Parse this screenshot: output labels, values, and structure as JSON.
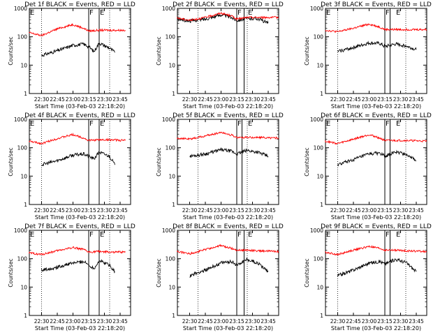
{
  "colors": {
    "events": "#000000",
    "lld": "#ff0000",
    "background": "#ffffff"
  },
  "shared": {
    "ylabel": "Counts/sec",
    "xlabel": "Start Time (03-Feb-03 22:18:20)",
    "x_tick_labels": [
      "22:30",
      "22:45",
      "23:00",
      "23:15",
      "23:30",
      "23:45"
    ],
    "y_tick_labels": [
      "1",
      "10",
      "100",
      "1000"
    ],
    "yscale": "log",
    "ylim": [
      1,
      1000
    ],
    "xlim": [
      "22:18:20",
      "23:55"
    ]
  },
  "chart_data": [
    {
      "type": "line",
      "title": "Det 1f BLACK = Events, RED = LLD",
      "x_tick_labels": [
        "22:30",
        "22:45",
        "23:00",
        "23:15",
        "23:30",
        "23:45"
      ],
      "markers": [
        {
          "label": "E",
          "at": "22:18"
        },
        {
          "label": "F",
          "at": "23:15"
        },
        {
          "label": "E",
          "at": "23:25"
        }
      ],
      "dotted_lines": [
        "22:30",
        "23:15",
        "23:35"
      ],
      "solid_lines": [
        "23:15",
        "23:25"
      ],
      "series": [
        {
          "name": "Events",
          "color": "#000000",
          "x": [
            "22:30",
            "22:45",
            "23:00",
            "23:10",
            "23:15",
            "23:20",
            "23:25",
            "23:35",
            "23:40"
          ],
          "y": [
            22,
            32,
            50,
            55,
            45,
            30,
            60,
            40,
            28
          ]
        },
        {
          "name": "LLD",
          "color": "#ff0000",
          "x": [
            "22:18",
            "22:30",
            "22:45",
            "23:00",
            "23:10",
            "23:15",
            "23:25",
            "23:35",
            "23:50"
          ],
          "y": [
            140,
            110,
            190,
            270,
            200,
            160,
            170,
            170,
            170
          ]
        }
      ]
    },
    {
      "type": "line",
      "title": "Det 2f BLACK = Events, RED = LLD",
      "x_tick_labels": [
        "22:30",
        "22:45",
        "23:00",
        "23:15",
        "23:30",
        "23:45"
      ],
      "markers": [
        {
          "label": "F",
          "at": "23:15"
        },
        {
          "label": "E",
          "at": "23:25"
        }
      ],
      "dotted_lines": [
        "22:38",
        "23:15",
        "23:25"
      ],
      "solid_lines": [
        "23:15",
        "23:22"
      ],
      "series": [
        {
          "name": "Events",
          "color": "#000000",
          "x": [
            "22:18",
            "22:30",
            "22:45",
            "23:00",
            "23:10",
            "23:15",
            "23:25",
            "23:35",
            "23:45"
          ],
          "y": [
            420,
            360,
            420,
            600,
            480,
            380,
            440,
            440,
            300
          ]
        },
        {
          "name": "LLD",
          "color": "#ff0000",
          "x": [
            "22:18",
            "22:30",
            "22:45",
            "23:00",
            "23:10",
            "23:15",
            "23:25",
            "23:35",
            "23:55"
          ],
          "y": [
            460,
            380,
            480,
            680,
            540,
            420,
            480,
            480,
            480
          ]
        }
      ]
    },
    {
      "type": "line",
      "title": "Det 3f BLACK = Events, RED = LLD",
      "x_tick_labels": [
        "22:30",
        "22:45",
        "23:00",
        "23:15",
        "23:30",
        "23:45"
      ],
      "markers": [
        {
          "label": "E",
          "at": "22:18"
        },
        {
          "label": "F",
          "at": "23:15"
        },
        {
          "label": "E",
          "at": "23:25"
        }
      ],
      "dotted_lines": [
        "22:30",
        "23:15",
        "23:35"
      ],
      "solid_lines": [
        "23:15",
        "23:20"
      ],
      "series": [
        {
          "name": "Events",
          "color": "#000000",
          "x": [
            "22:30",
            "22:45",
            "23:00",
            "23:10",
            "23:15",
            "23:25",
            "23:35",
            "23:45"
          ],
          "y": [
            30,
            42,
            60,
            58,
            45,
            55,
            48,
            35
          ]
        },
        {
          "name": "LLD",
          "color": "#ff0000",
          "x": [
            "22:18",
            "22:30",
            "22:45",
            "23:00",
            "23:10",
            "23:15",
            "23:25",
            "23:35",
            "23:55"
          ],
          "y": [
            170,
            150,
            200,
            280,
            220,
            180,
            180,
            180,
            180
          ]
        }
      ]
    },
    {
      "type": "line",
      "title": "Det 4f BLACK = Events, RED = LLD",
      "x_tick_labels": [
        "22:30",
        "22:45",
        "23:00",
        "23:15",
        "23:30",
        "23:45"
      ],
      "markers": [
        {
          "label": "E",
          "at": "22:18"
        },
        {
          "label": "F",
          "at": "23:15"
        },
        {
          "label": "E",
          "at": "23:25"
        }
      ],
      "dotted_lines": [
        "22:30",
        "23:15",
        "23:35"
      ],
      "solid_lines": [
        "23:15",
        "23:25"
      ],
      "series": [
        {
          "name": "Events",
          "color": "#000000",
          "x": [
            "22:30",
            "22:45",
            "23:00",
            "23:10",
            "23:15",
            "23:20",
            "23:25",
            "23:35",
            "23:40"
          ],
          "y": [
            25,
            35,
            55,
            60,
            50,
            40,
            70,
            50,
            25
          ]
        },
        {
          "name": "LLD",
          "color": "#ff0000",
          "x": [
            "22:18",
            "22:30",
            "22:45",
            "23:00",
            "23:10",
            "23:15",
            "23:25",
            "23:35",
            "23:50"
          ],
          "y": [
            170,
            140,
            210,
            290,
            220,
            180,
            190,
            190,
            180
          ]
        }
      ]
    },
    {
      "type": "line",
      "title": "Det 5f BLACK = Events, RED = LLD",
      "x_tick_labels": [
        "22:30",
        "22:45",
        "23:00",
        "23:15",
        "23:30",
        "23:45"
      ],
      "markers": [
        {
          "label": "F",
          "at": "23:15"
        },
        {
          "label": "E",
          "at": "23:25"
        }
      ],
      "dotted_lines": [
        "22:38",
        "23:15",
        "23:25"
      ],
      "solid_lines": [
        "23:15",
        "23:20"
      ],
      "series": [
        {
          "name": "Events",
          "color": "#000000",
          "x": [
            "22:30",
            "22:45",
            "23:00",
            "23:10",
            "23:15",
            "23:25",
            "23:35",
            "23:45"
          ],
          "y": [
            50,
            60,
            85,
            75,
            60,
            80,
            70,
            50
          ]
        },
        {
          "name": "LLD",
          "color": "#ff0000",
          "x": [
            "22:18",
            "22:30",
            "22:45",
            "23:00",
            "23:10",
            "23:15",
            "23:25",
            "23:35",
            "23:55"
          ],
          "y": [
            220,
            200,
            260,
            350,
            280,
            230,
            230,
            230,
            220
          ]
        }
      ]
    },
    {
      "type": "line",
      "title": "Det 6f BLACK = Events, RED = LLD",
      "x_tick_labels": [
        "22:30",
        "22:45",
        "23:00",
        "23:15",
        "23:30",
        "23:45"
      ],
      "markers": [
        {
          "label": "E",
          "at": "22:18"
        },
        {
          "label": "F",
          "at": "23:15"
        },
        {
          "label": "E",
          "at": "23:25"
        }
      ],
      "dotted_lines": [
        "22:30",
        "23:15",
        "23:35"
      ],
      "solid_lines": [
        "23:15",
        "23:20"
      ],
      "series": [
        {
          "name": "Events",
          "color": "#000000",
          "x": [
            "22:30",
            "22:45",
            "23:00",
            "23:10",
            "23:15",
            "23:25",
            "23:35",
            "23:45"
          ],
          "y": [
            25,
            38,
            60,
            65,
            50,
            70,
            60,
            35
          ]
        },
        {
          "name": "LLD",
          "color": "#ff0000",
          "x": [
            "22:18",
            "22:30",
            "22:45",
            "23:00",
            "23:10",
            "23:15",
            "23:25",
            "23:35",
            "23:55"
          ],
          "y": [
            170,
            140,
            200,
            290,
            220,
            180,
            180,
            180,
            170
          ]
        }
      ]
    },
    {
      "type": "line",
      "title": "Det 7f BLACK = Events, RED = LLD",
      "x_tick_labels": [
        "22:30",
        "22:45",
        "23:00",
        "23:15",
        "23:30",
        "23:45"
      ],
      "markers": [
        {
          "label": "E",
          "at": "22:18"
        },
        {
          "label": "F",
          "at": "23:15"
        },
        {
          "label": "E",
          "at": "23:25"
        }
      ],
      "dotted_lines": [
        "22:30",
        "23:15",
        "23:35"
      ],
      "solid_lines": [
        "23:15",
        "23:25"
      ],
      "series": [
        {
          "name": "Events",
          "color": "#000000",
          "x": [
            "22:30",
            "22:45",
            "23:00",
            "23:10",
            "23:15",
            "23:20",
            "23:25",
            "23:35",
            "23:40"
          ],
          "y": [
            40,
            50,
            70,
            80,
            60,
            45,
            85,
            60,
            35
          ]
        },
        {
          "name": "LLD",
          "color": "#ff0000",
          "x": [
            "22:18",
            "22:30",
            "22:45",
            "23:00",
            "23:10",
            "23:15",
            "23:25",
            "23:35",
            "23:50"
          ],
          "y": [
            160,
            140,
            190,
            250,
            210,
            170,
            180,
            170,
            170
          ]
        }
      ]
    },
    {
      "type": "line",
      "title": "Det 8f BLACK = Events, RED = LLD",
      "x_tick_labels": [
        "22:30",
        "22:45",
        "23:00",
        "23:15",
        "23:30",
        "23:45"
      ],
      "markers": [
        {
          "label": "F",
          "at": "23:15"
        },
        {
          "label": "E",
          "at": "23:25"
        }
      ],
      "dotted_lines": [
        "22:38",
        "23:15",
        "23:25"
      ],
      "solid_lines": [
        "23:15",
        "23:22"
      ],
      "series": [
        {
          "name": "Events",
          "color": "#000000",
          "x": [
            "22:30",
            "22:45",
            "23:00",
            "23:10",
            "23:15",
            "23:25",
            "23:35",
            "23:45"
          ],
          "y": [
            25,
            40,
            70,
            80,
            60,
            95,
            70,
            35
          ]
        },
        {
          "name": "LLD",
          "color": "#ff0000",
          "x": [
            "22:18",
            "22:30",
            "22:45",
            "23:00",
            "23:10",
            "23:15",
            "23:25",
            "23:35",
            "23:55"
          ],
          "y": [
            180,
            150,
            210,
            290,
            230,
            200,
            200,
            190,
            180
          ]
        }
      ]
    },
    {
      "type": "line",
      "title": "Det 9f BLACK = Events, RED = LLD",
      "x_tick_labels": [
        "22:30",
        "22:45",
        "23:00",
        "23:15",
        "23:30",
        "23:45"
      ],
      "markers": [
        {
          "label": "E",
          "at": "22:18"
        },
        {
          "label": "F",
          "at": "23:15"
        },
        {
          "label": "E",
          "at": "23:25"
        }
      ],
      "dotted_lines": [
        "22:30",
        "23:15",
        "23:35"
      ],
      "solid_lines": [
        "23:15",
        "23:20"
      ],
      "series": [
        {
          "name": "Events",
          "color": "#000000",
          "x": [
            "22:30",
            "22:45",
            "23:00",
            "23:10",
            "23:15",
            "23:25",
            "23:35",
            "23:45"
          ],
          "y": [
            25,
            40,
            70,
            80,
            65,
            95,
            75,
            35
          ]
        },
        {
          "name": "LLD",
          "color": "#ff0000",
          "x": [
            "22:18",
            "22:30",
            "22:45",
            "23:00",
            "23:10",
            "23:15",
            "23:25",
            "23:35",
            "23:55"
          ],
          "y": [
            170,
            140,
            200,
            270,
            230,
            200,
            200,
            190,
            180
          ]
        }
      ]
    }
  ]
}
